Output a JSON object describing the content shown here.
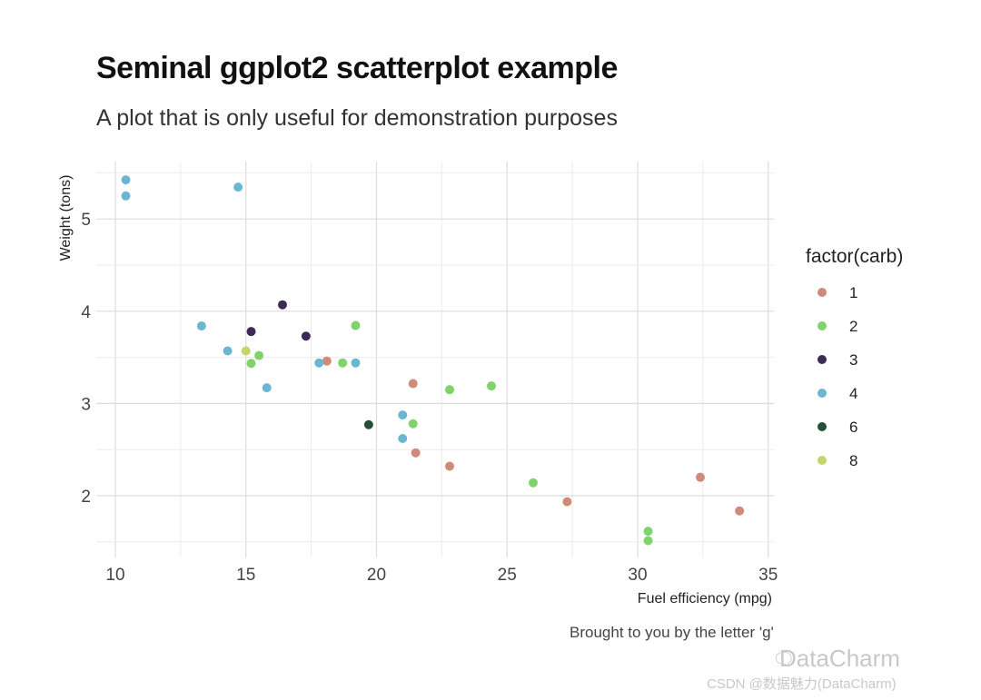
{
  "chart_data": {
    "type": "scatter",
    "title": "Seminal ggplot2 scatterplot example",
    "subtitle": "A plot that is only useful for demonstration purposes",
    "xlabel": "Fuel efficiency (mpg)",
    "ylabel": "Weight (tons)",
    "caption": "Brought to you by the letter 'g'",
    "xlim": [
      10,
      35
    ],
    "ylim": [
      1.5,
      5.5
    ],
    "x_ticks": [
      10,
      15,
      20,
      25,
      30,
      35
    ],
    "y_ticks": [
      2,
      3,
      4,
      5
    ],
    "grid": true,
    "legend": {
      "title": "factor(carb)",
      "placement": "right"
    },
    "series": [
      {
        "name": "1",
        "color": "#D08A78",
        "points": [
          [
            21.4,
            3.215
          ],
          [
            18.1,
            3.46
          ],
          [
            22.8,
            2.32
          ],
          [
            32.4,
            2.2
          ],
          [
            33.9,
            1.835
          ],
          [
            21.5,
            2.465
          ],
          [
            27.3,
            1.935
          ]
        ]
      },
      {
        "name": "2",
        "color": "#7FD36A",
        "points": [
          [
            18.7,
            3.44
          ],
          [
            24.4,
            3.19
          ],
          [
            22.8,
            3.15
          ],
          [
            19.2,
            3.845
          ],
          [
            30.4,
            1.615
          ],
          [
            15.5,
            3.52
          ],
          [
            15.2,
            3.435
          ],
          [
            26.0,
            2.14
          ],
          [
            30.4,
            1.513
          ],
          [
            21.4,
            2.78
          ]
        ]
      },
      {
        "name": "3",
        "color": "#3D2B56",
        "points": [
          [
            16.4,
            4.07
          ],
          [
            17.3,
            3.73
          ],
          [
            15.2,
            3.78
          ]
        ]
      },
      {
        "name": "4",
        "color": "#6BB7D2",
        "points": [
          [
            21.0,
            2.62
          ],
          [
            21.0,
            2.875
          ],
          [
            14.3,
            3.57
          ],
          [
            19.2,
            3.44
          ],
          [
            17.8,
            3.44
          ],
          [
            10.4,
            5.25
          ],
          [
            10.4,
            5.424
          ],
          [
            14.7,
            5.345
          ],
          [
            13.3,
            3.84
          ],
          [
            15.8,
            3.17
          ]
        ]
      },
      {
        "name": "6",
        "color": "#24503A",
        "points": [
          [
            19.7,
            2.77
          ]
        ]
      },
      {
        "name": "8",
        "color": "#C8D46A",
        "points": [
          [
            15.0,
            3.57
          ]
        ]
      }
    ]
  },
  "watermark": {
    "icon": "wechat-icon",
    "text": "DataCharm",
    "credit": "CSDN @数据魅力(DataCharm)"
  }
}
